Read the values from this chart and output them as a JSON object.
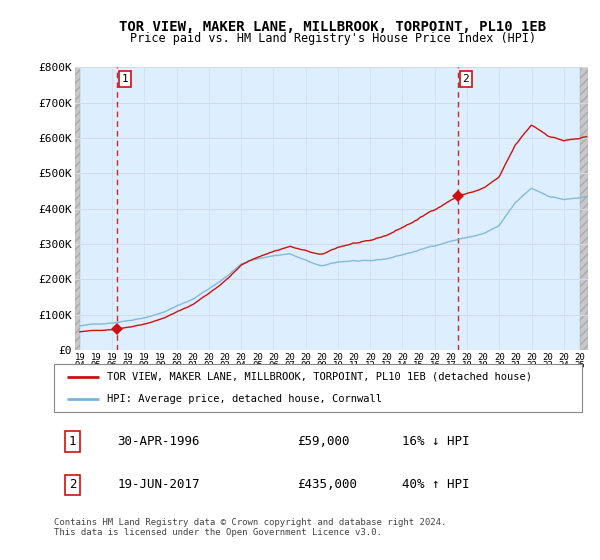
{
  "title": "TOR VIEW, MAKER LANE, MILLBROOK, TORPOINT, PL10 1EB",
  "subtitle": "Price paid vs. HM Land Registry's House Price Index (HPI)",
  "ylabel_ticks": [
    "£0",
    "£100K",
    "£200K",
    "£300K",
    "£400K",
    "£500K",
    "£600K",
    "£700K",
    "£800K"
  ],
  "ytick_values": [
    0,
    100000,
    200000,
    300000,
    400000,
    500000,
    600000,
    700000,
    800000
  ],
  "ylim": [
    0,
    800000
  ],
  "xlim_start": 1993.7,
  "xlim_end": 2025.5,
  "sale1_x": 1996.33,
  "sale1_y": 59000,
  "sale2_x": 2017.47,
  "sale2_y": 435000,
  "sale1_label": "1",
  "sale2_label": "2",
  "hpi_color": "#7ab3d9",
  "sale_color": "#cc1111",
  "vline_color": "#cc1111",
  "chart_bg": "#ddeeff",
  "hatch_bg": "#d8d8d8",
  "grid_color": "#bbccdd",
  "legend_sale_label": "TOR VIEW, MAKER LANE, MILLBROOK, TORPOINT, PL10 1EB (detached house)",
  "legend_hpi_label": "HPI: Average price, detached house, Cornwall",
  "table_row1": [
    "1",
    "30-APR-1996",
    "£59,000",
    "16% ↓ HPI"
  ],
  "table_row2": [
    "2",
    "19-JUN-2017",
    "£435,000",
    "40% ↑ HPI"
  ],
  "footnote": "Contains HM Land Registry data © Crown copyright and database right 2024.\nThis data is licensed under the Open Government Licence v3.0."
}
